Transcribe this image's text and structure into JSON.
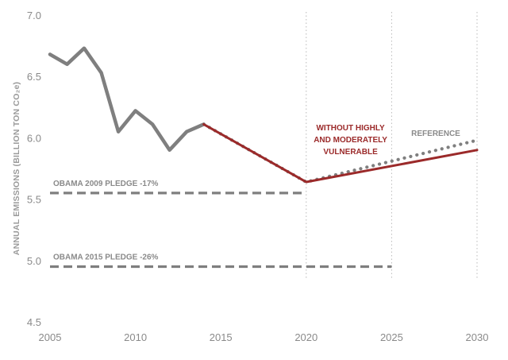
{
  "chart_data": {
    "type": "line",
    "title": "",
    "xlabel": "",
    "ylabel": "ANNUAL EMISSIONS (BILLION TON CO₂e)",
    "xlim": [
      2005,
      2030
    ],
    "ylim": [
      4.5,
      7.0
    ],
    "x_ticks": [
      "2005",
      "2010",
      "2015",
      "2020",
      "2025",
      "2030"
    ],
    "y_ticks": [
      "4.5",
      "5.0",
      "5.5",
      "6.0",
      "6.5",
      "7.0"
    ],
    "grid": false,
    "vertical_markers": [
      2020,
      2025,
      2030
    ],
    "series": [
      {
        "color": "#7f7f7f",
        "style": "solid",
        "x": [
          2005,
          2006,
          2007,
          2008,
          2009,
          2010,
          2011,
          2012,
          2013,
          2014
        ],
        "y": [
          6.68,
          6.6,
          6.73,
          6.53,
          6.05,
          6.22,
          6.11,
          5.9,
          6.05,
          6.11
        ]
      },
      {
        "name": "REFERENCE",
        "color": "#7f7f7f",
        "style": "dotted",
        "x": [
          2014,
          2020,
          2030
        ],
        "y": [
          6.11,
          5.64,
          5.98
        ]
      },
      {
        "name": "WITHOUT HIGHLY AND MODERATELY VULNERABLE",
        "color": "#9b2a2a",
        "style": "solid",
        "x": [
          2014,
          2020,
          2030
        ],
        "y": [
          6.11,
          5.64,
          5.9
        ]
      }
    ],
    "pledges": [
      {
        "label": "OBAMA 2009 PLEDGE -17%",
        "value": 5.55,
        "x_range": [
          2005,
          2020
        ]
      },
      {
        "label": "OBAMA 2015 PLEDGE -26%",
        "value": 4.95,
        "x_range": [
          2005,
          2025
        ]
      }
    ],
    "annotations": {
      "red": [
        "WITHOUT HIGHLY",
        "AND MODERATELY",
        "VULNERABLE"
      ],
      "gray": "REFERENCE"
    }
  }
}
